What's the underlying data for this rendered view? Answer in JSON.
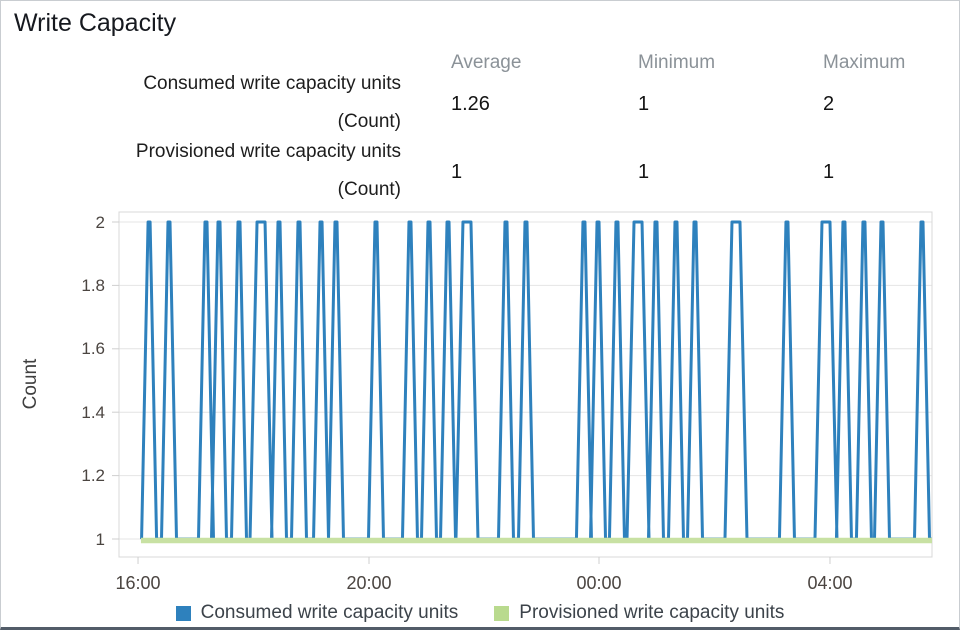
{
  "window": {
    "title": "Write Capacity"
  },
  "stats_table": {
    "columns": [
      "Average",
      "Minimum",
      "Maximum"
    ],
    "rows": [
      {
        "metric": "Consumed write capacity units",
        "unit_label": "(Count)",
        "average": "1.26",
        "minimum": "1",
        "maximum": "2"
      },
      {
        "metric": "Provisioned write capacity units",
        "unit_label": "(Count)",
        "average": "1",
        "minimum": "1",
        "maximum": "1"
      }
    ]
  },
  "chart_data": {
    "type": "line",
    "title": "Write Capacity",
    "xlabel": "",
    "ylabel": "Count",
    "ylim": [
      1,
      2
    ],
    "yticks": [
      2,
      1.8,
      1.6,
      1.4,
      1.2,
      1
    ],
    "grid": true,
    "legend_position": "bottom",
    "xticks": [
      {
        "label": "16:00",
        "f": 0.0234
      },
      {
        "label": "20:00",
        "f": 0.3075
      },
      {
        "label": "00:00",
        "f": 0.5904
      },
      {
        "label": "04:00",
        "f": 0.8745
      }
    ],
    "series": [
      {
        "name": "Consumed write capacity units",
        "color": "#2e81bd",
        "baseline_value": 1,
        "peak_value": 2,
        "data_start_fraction": 0.027,
        "data_end_fraction": 1.0,
        "spikes": [
          {
            "f": 0.037,
            "wide": false
          },
          {
            "f": 0.0615,
            "wide": false
          },
          {
            "f": 0.107,
            "wide": false
          },
          {
            "f": 0.123,
            "wide": false
          },
          {
            "f": 0.1476,
            "wide": false
          },
          {
            "f": 0.1747,
            "wide": true
          },
          {
            "f": 0.1968,
            "wide": false
          },
          {
            "f": 0.2214,
            "wide": false
          },
          {
            "f": 0.2485,
            "wide": false
          },
          {
            "f": 0.2669,
            "wide": false
          },
          {
            "f": 0.3161,
            "wide": false
          },
          {
            "f": 0.3579,
            "wide": false
          },
          {
            "f": 0.3813,
            "wide": false
          },
          {
            "f": 0.4047,
            "wide": false
          },
          {
            "f": 0.428,
            "wide": true
          },
          {
            "f": 0.476,
            "wide": false
          },
          {
            "f": 0.5006,
            "wide": false
          },
          {
            "f": 0.5719,
            "wide": false
          },
          {
            "f": 0.5892,
            "wide": false
          },
          {
            "f": 0.6125,
            "wide": false
          },
          {
            "f": 0.6384,
            "wide": true
          },
          {
            "f": 0.6605,
            "wide": false
          },
          {
            "f": 0.6851,
            "wide": false
          },
          {
            "f": 0.7085,
            "wide": false
          },
          {
            "f": 0.7589,
            "wide": true
          },
          {
            "f": 0.8216,
            "wide": false
          },
          {
            "f": 0.8696,
            "wide": true
          },
          {
            "f": 0.8917,
            "wide": false
          },
          {
            "f": 0.9163,
            "wide": false
          },
          {
            "f": 0.9385,
            "wide": false
          },
          {
            "f": 0.9877,
            "wide": false
          }
        ]
      },
      {
        "name": "Provisioned write capacity units",
        "color": "#c8e1a3",
        "constant_value": 1
      }
    ]
  },
  "legend": {
    "items": [
      {
        "label": "Consumed write capacity units",
        "color": "#2e81bd"
      },
      {
        "label": "Provisioned write capacity units",
        "color": "#b9da8e"
      }
    ]
  }
}
